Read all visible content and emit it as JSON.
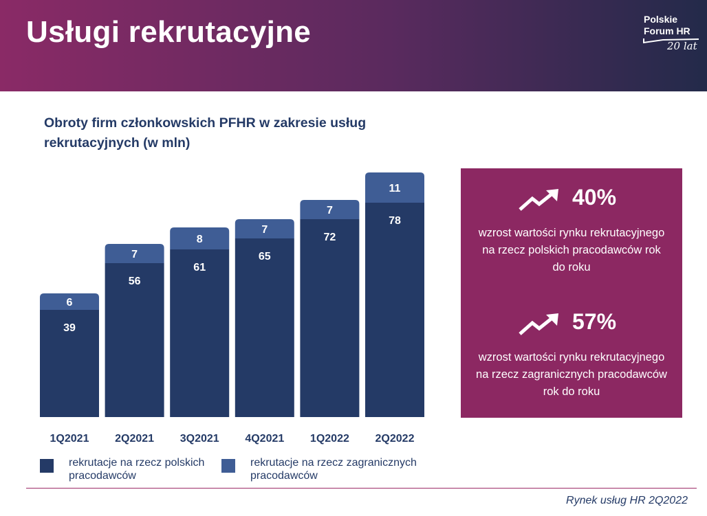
{
  "header": {
    "title": "Usługi rekrutacyjne"
  },
  "logo": {
    "line1": "Polskie",
    "line2": "Forum HR",
    "line3": "20 lat"
  },
  "chart_data": {
    "type": "bar",
    "stacked": true,
    "title": "Obroty firm członkowskich PFHR w zakresie usług rekrutacyjnych (w mln)",
    "categories": [
      "1Q2021",
      "2Q2021",
      "3Q2021",
      "4Q2021",
      "1Q2022",
      "2Q2022"
    ],
    "series": [
      {
        "name": "rekrutacje na rzecz polskich pracodawców",
        "values": [
          39,
          56,
          61,
          65,
          72,
          78
        ],
        "color": "#243a66"
      },
      {
        "name": "rekrutacje na rzecz zagranicznych pracodawców",
        "values": [
          6,
          7,
          8,
          7,
          7,
          11
        ],
        "color": "#3f5d95"
      }
    ],
    "data_labels": true,
    "legend_position": "bottom-left",
    "grid": false
  },
  "stats": [
    {
      "value": "40%",
      "description": "wzrost wartości rynku rekrutacyjnego na rzecz polskich pracodawców rok do roku",
      "icon": "trend-up-icon"
    },
    {
      "value": "57%",
      "description": "wzrost wartości rynku rekrutacyjnego na rzecz zagranicznych pracodawców rok do roku",
      "icon": "trend-up-icon"
    }
  ],
  "colors": {
    "accent": "#8c2862",
    "primary": "#243a66",
    "secondary": "#3f5d95"
  },
  "footer": {
    "text": "Rynek usług HR 2Q2022"
  }
}
